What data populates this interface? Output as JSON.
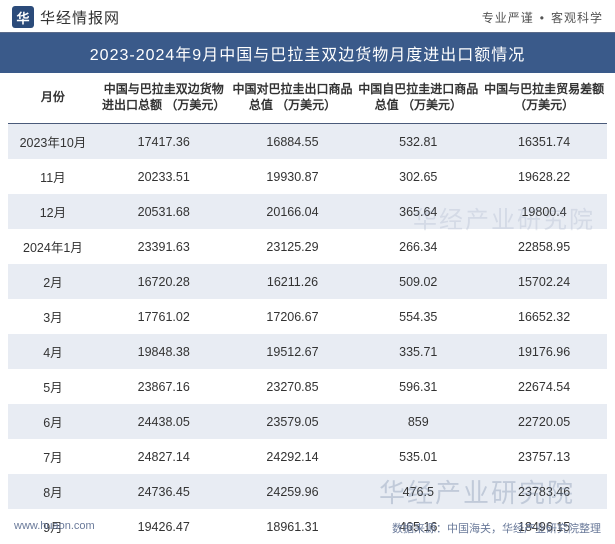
{
  "header": {
    "logo_initial": "华",
    "logo_text": "华经情报网",
    "slogan_left": "专业严谨",
    "slogan_right": "客观科学"
  },
  "title": "2023-2024年9月中国与巴拉圭双边货物月度进出口额情况",
  "columns": [
    "月份",
    "中国与巴拉圭双边货物进出口总额\n（万美元）",
    "中国对巴拉圭出口商品总值\n（万美元）",
    "中国自巴拉圭进口商品总值\n（万美元）",
    "中国与巴拉圭贸易差额\n（万美元）"
  ],
  "rows": [
    {
      "cells": [
        "2023年10月",
        "17417.36",
        "16884.55",
        "532.81",
        "16351.74"
      ]
    },
    {
      "cells": [
        "11月",
        "20233.51",
        "19930.87",
        "302.65",
        "19628.22"
      ]
    },
    {
      "cells": [
        "12月",
        "20531.68",
        "20166.04",
        "365.64",
        "19800.4"
      ]
    },
    {
      "cells": [
        "2024年1月",
        "23391.63",
        "23125.29",
        "266.34",
        "22858.95"
      ]
    },
    {
      "cells": [
        "2月",
        "16720.28",
        "16211.26",
        "509.02",
        "15702.24"
      ]
    },
    {
      "cells": [
        "3月",
        "17761.02",
        "17206.67",
        "554.35",
        "16652.32"
      ]
    },
    {
      "cells": [
        "4月",
        "19848.38",
        "19512.67",
        "335.71",
        "19176.96"
      ]
    },
    {
      "cells": [
        "5月",
        "23867.16",
        "23270.85",
        "596.31",
        "22674.54"
      ]
    },
    {
      "cells": [
        "6月",
        "24438.05",
        "23579.05",
        "859",
        "22720.05"
      ]
    },
    {
      "cells": [
        "7月",
        "24827.14",
        "24292.14",
        "535.01",
        "23757.13"
      ]
    },
    {
      "cells": [
        "8月",
        "24736.45",
        "24259.96",
        "476.5",
        "23783.46"
      ]
    },
    {
      "cells": [
        "9月",
        "19426.47",
        "18961.31",
        "465.16",
        "18496.15"
      ]
    }
  ],
  "footer": {
    "site": "www.huaon.com",
    "source": "数据来源：中国海关，华经产业研究院整理"
  },
  "watermark": "华经产业研究院",
  "colors": {
    "header_bg": "#3a5a8a",
    "stripe_bg": "#e8ecf3",
    "border": "#4a5a7a",
    "text": "#333333",
    "footer_text": "#6a7a9a"
  }
}
